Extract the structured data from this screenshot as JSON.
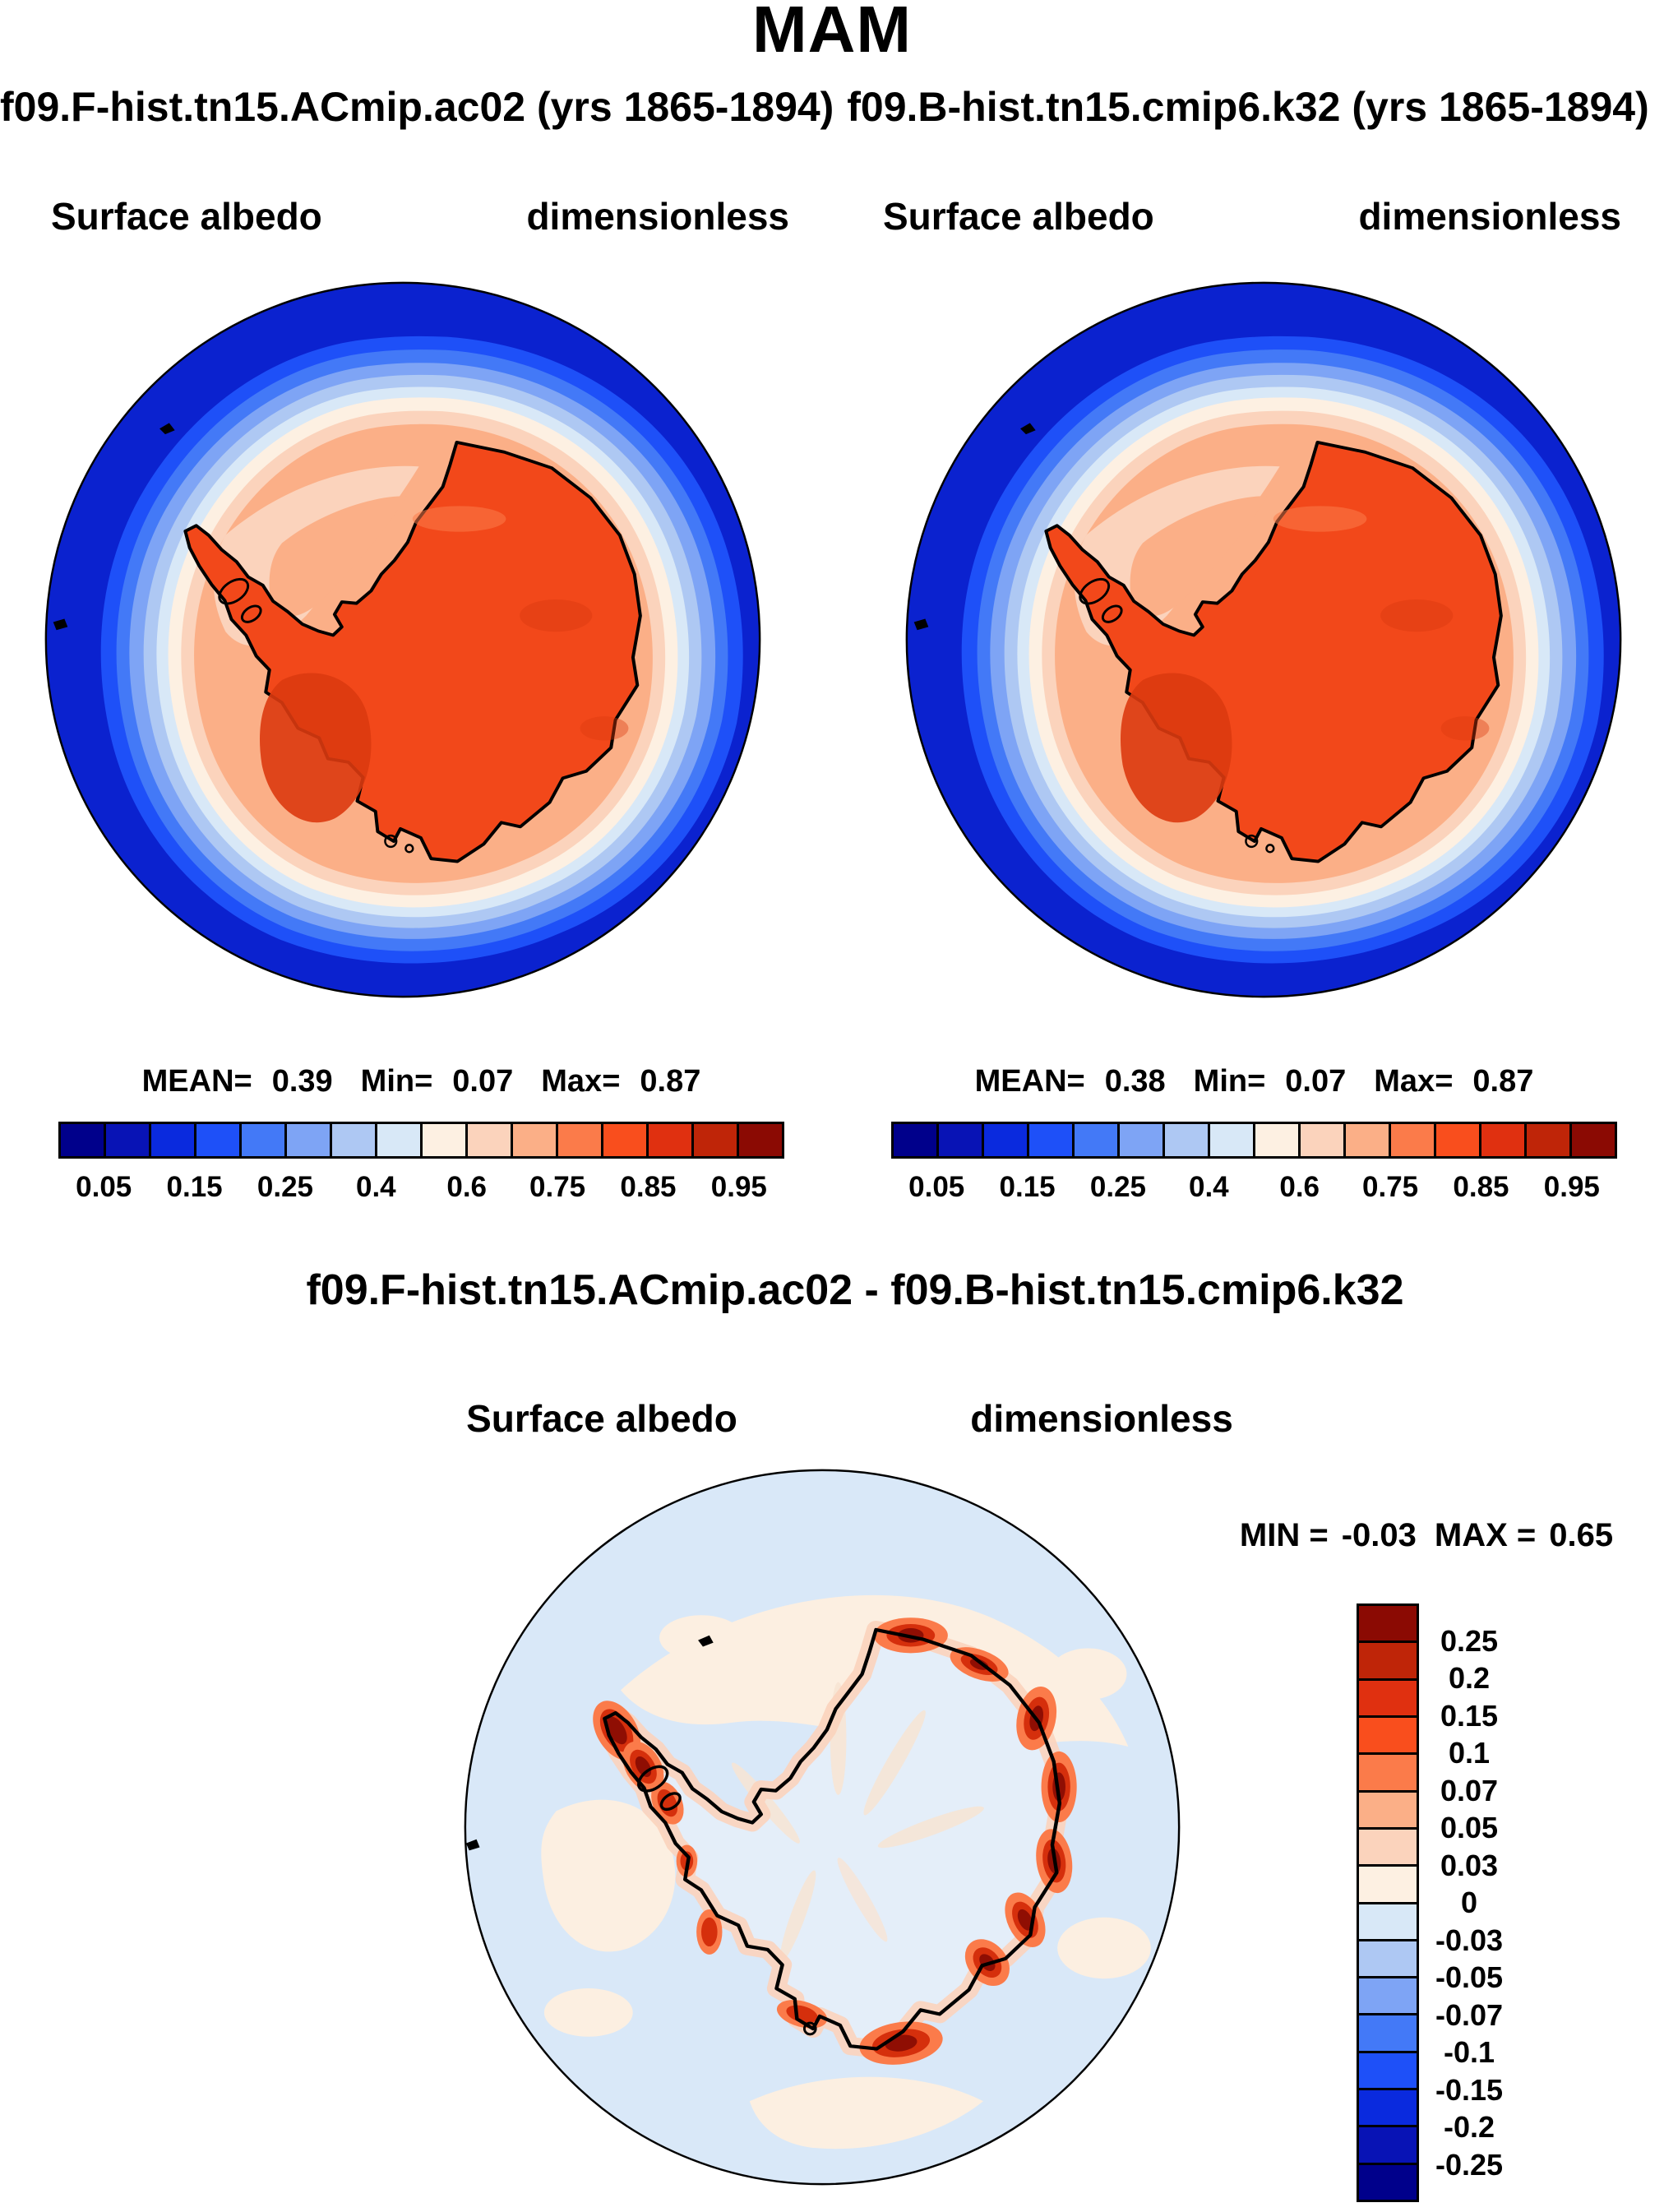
{
  "title": "MAM",
  "panels": [
    {
      "run_title": "f09.F-hist.tn15.ACmip.ac02 (yrs 1865-1894)",
      "field_label": "Surface albedo",
      "units_label": "dimensionless",
      "stats_line": {
        "mean_label": "MEAN=",
        "mean": "0.39",
        "min_label": "Min=",
        "min": "0.07",
        "max_label": "Max=",
        "max": "0.87"
      },
      "colorbar_ticks": [
        "0.05",
        "0.15",
        "0.25",
        "0.4",
        "0.6",
        "0.75",
        "0.85",
        "0.95"
      ]
    },
    {
      "run_title": "f09.B-hist.tn15.cmip6.k32 (yrs 1865-1894)",
      "field_label": "Surface albedo",
      "units_label": "dimensionless",
      "stats_line": {
        "mean_label": "MEAN=",
        "mean": "0.38",
        "min_label": "Min=",
        "min": "0.07",
        "max_label": "Max=",
        "max": "0.87"
      },
      "colorbar_ticks": [
        "0.05",
        "0.15",
        "0.25",
        "0.4",
        "0.6",
        "0.75",
        "0.85",
        "0.95"
      ]
    }
  ],
  "diff_panel": {
    "title": "f09.F-hist.tn15.ACmip.ac02 - f09.B-hist.tn15.cmip6.k32",
    "field_label": "Surface albedo",
    "units_label": "dimensionless",
    "stats_line": {
      "min_label": "MIN =",
      "min": "-0.03",
      "max_label": "MAX =",
      "max": "0.65"
    },
    "colorbar_ticks": [
      "0.25",
      "0.2",
      "0.15",
      "0.1",
      "0.07",
      "0.05",
      "0.03",
      "0",
      "-0.03",
      "-0.05",
      "-0.07",
      "-0.1",
      "-0.15",
      "-0.2",
      "-0.25"
    ]
  },
  "palette": {
    "albedo_colors": [
      "#00008B",
      "#0813B5",
      "#0A2ADE",
      "#1E50F8",
      "#4379F7",
      "#7EA4F5",
      "#AEC8F3",
      "#D8E8F7",
      "#FDF0E2",
      "#FBD3BC",
      "#FBAF87",
      "#FB7B4A",
      "#F94E1D",
      "#E03010",
      "#BF2508",
      "#8B0A03"
    ],
    "diff_colors": [
      "#8B0A03",
      "#BF2508",
      "#E03010",
      "#F94E1D",
      "#FB7B4A",
      "#FBAF87",
      "#FBD3BC",
      "#FDF0E2",
      "#D8E8F7",
      "#AEC8F3",
      "#7EA4F5",
      "#4379F7",
      "#1E50F8",
      "#0A2ADE",
      "#0813B5",
      "#00008B"
    ]
  },
  "map_colors": {
    "ocean": "#0B22CF",
    "continent": "#F2481A",
    "continent_dark": "#DC3A10",
    "coastline": "#000000",
    "diff_background": "#D9E8F8",
    "diff_peach": "#FCEFE1",
    "diff_land": "#E4EEF9",
    "diff_streak": "#F7E4D4",
    "diff_coast_halo": "#FBD3BC",
    "diff_spot_outer": "#FB7B4A",
    "diff_spot_mid": "#D52F0C",
    "diff_spot_core": "#8F0E03"
  },
  "chart_data": {
    "type": "heatmap",
    "subtype": "south-polar-stereographic contour maps (NCL-style model diagnostic)",
    "title": "MAM",
    "variable": "Surface albedo",
    "units": "dimensionless",
    "region": "Antarctica / Southern Ocean",
    "panels": [
      {
        "name": "f09.F-hist.tn15.ACmip.ac02",
        "years": "1865-1894",
        "mean": 0.39,
        "min": 0.07,
        "max": 0.87
      },
      {
        "name": "f09.B-hist.tn15.cmip6.k32",
        "years": "1865-1894",
        "mean": 0.38,
        "min": 0.07,
        "max": 0.87
      },
      {
        "name": "f09.F-hist.tn15.ACmip.ac02 - f09.B-hist.tn15.cmip6.k32",
        "kind": "difference",
        "min": -0.03,
        "max": 0.65
      }
    ],
    "colorbar_labels": [
      0.05,
      0.15,
      0.25,
      0.4,
      0.6,
      0.75,
      0.85,
      0.95
    ],
    "diff_colorbar_labels": [
      0.25,
      0.2,
      0.15,
      0.1,
      0.07,
      0.05,
      0.03,
      0,
      -0.03,
      -0.05,
      -0.07,
      -0.1,
      -0.15,
      -0.2,
      -0.25
    ],
    "n_color_segments": 16,
    "legend_position": [
      "horizontal below each upper panel",
      "vertical right of difference map"
    ],
    "grid": false
  }
}
